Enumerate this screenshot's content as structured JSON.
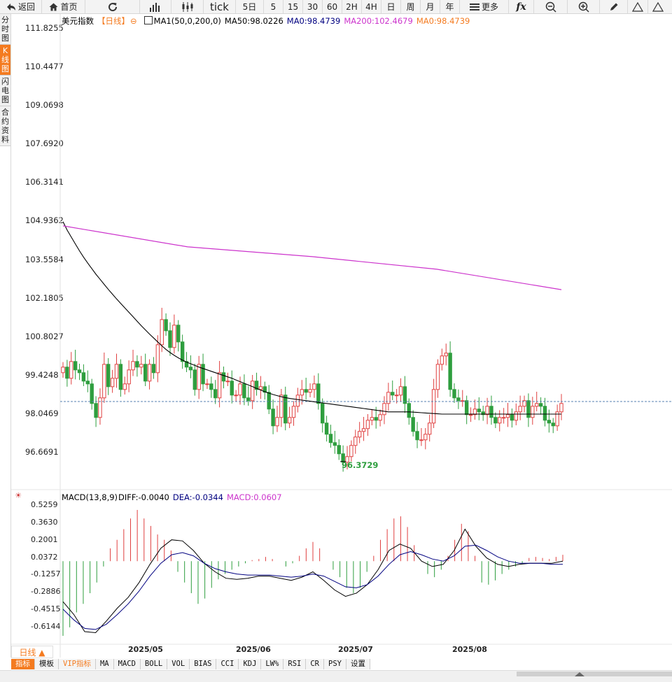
{
  "toolbar": {
    "back": "返回",
    "home": "首页",
    "tick": "tick",
    "periods": [
      "5日",
      "5",
      "15",
      "30",
      "60",
      "2H",
      "4H",
      "日",
      "周",
      "月",
      "年"
    ],
    "more": "更多"
  },
  "side_tabs": [
    "分时图",
    "K线图",
    "闪电图",
    "合约资料"
  ],
  "main_legend": {
    "name": "美元指数",
    "period": "【日线】",
    "ma_label": "MA1(50,0,200,0)",
    "ma50": "MA50:98.0226",
    "ma0_a": "MA0:98.4739",
    "ma200": "MA200:102.4679",
    "ma0_b": "MA0:98.4739"
  },
  "macd_legend": {
    "name": "MACD(13,8,9)",
    "diff": "DIFF:-0.0040",
    "dea": "DEA:-0.0344",
    "macd": "MACD:0.0607"
  },
  "price_axis": [
    "111.8255",
    "110.4477",
    "109.0698",
    "107.6920",
    "106.3141",
    "104.9362",
    "103.5584",
    "102.1805",
    "100.8027",
    "99.4248",
    "98.0469",
    "96.6691"
  ],
  "macd_axis": [
    "0.5259",
    "0.3630",
    "0.2001",
    "0.0372",
    "-0.1257",
    "-0.2886",
    "-0.4515",
    "-0.6144"
  ],
  "low_label": "96.3729",
  "x_axis": [
    "2025/05",
    "2025/06",
    "2025/07",
    "2025/08"
  ],
  "period_button": "日线 ▲",
  "bottom_tabs": [
    "指标",
    "模板",
    "VIP指标",
    "MA",
    "MACD",
    "BOLL",
    "VOL",
    "BIAS",
    "CCI",
    "KDJ",
    "LW%",
    "RSI",
    "CR",
    "PSY",
    "设置"
  ],
  "colors": {
    "up": "#e04040",
    "down": "#2e9e3e",
    "ma50": "#000000",
    "ma200": "#cc33cc",
    "accent": "#f47b20",
    "dea": "#000080"
  },
  "chart_data": {
    "type": "candlestick",
    "title": "美元指数",
    "price_range": [
      96.0,
      112.3
    ],
    "last_price_line": 98.47,
    "closes": [
      99.7,
      99.3,
      99.9,
      99.6,
      99.5,
      99.2,
      99.1,
      98.4,
      97.9,
      98.6,
      99.8,
      99.0,
      99.3,
      99.8,
      98.9,
      99.1,
      99.6,
      99.9,
      99.7,
      99.8,
      99.2,
      99.8,
      99.5,
      100.5,
      101.4,
      101.0,
      100.4,
      101.2,
      100.6,
      99.9,
      99.7,
      99.6,
      98.9,
      99.8,
      99.1,
      99.1,
      98.9,
      98.6,
      99.5,
      99.2,
      99.2,
      98.7,
      98.7,
      99.1,
      98.6,
      98.5,
      99.2,
      98.9,
      99.0,
      98.8,
      98.2,
      97.6,
      97.9,
      98.7,
      97.7,
      97.9,
      98.3,
      98.7,
      98.9,
      98.8,
      98.9,
      99.1,
      98.4,
      97.7,
      97.3,
      97.0,
      96.9,
      96.6,
      96.3,
      96.5,
      96.9,
      97.2,
      97.4,
      97.5,
      97.8,
      97.9,
      97.8,
      98.0,
      98.4,
      98.8,
      98.7,
      98.7,
      99.0,
      98.4,
      97.9,
      97.4,
      97.1,
      97.1,
      97.3,
      97.7,
      98.9,
      99.8,
      100.1,
      100.2,
      98.9,
      98.6,
      98.5,
      98.5,
      98.0,
      98.0,
      98.2,
      98.1,
      98.0,
      98.3,
      97.9,
      97.7,
      97.9,
      97.9,
      98.0,
      97.8,
      98.1,
      98.3,
      98.5,
      97.9,
      98.3,
      98.4,
      98.3,
      97.8,
      97.7,
      97.6,
      98.1,
      98.4
    ],
    "ma50": [
      104.9,
      104.6,
      104.35,
      104.1,
      103.86,
      103.63,
      103.42,
      103.22,
      103.02,
      102.84,
      102.66,
      102.48,
      102.31,
      102.14,
      101.98,
      101.82,
      101.66,
      101.5,
      101.34,
      101.18,
      101.03,
      100.88,
      100.74,
      100.6,
      100.46,
      100.33,
      100.22,
      100.12,
      100.03,
      99.95,
      99.88,
      99.82,
      99.76,
      99.7,
      99.65,
      99.6,
      99.55,
      99.5,
      99.45,
      99.4,
      99.35,
      99.3,
      99.24,
      99.18,
      99.12,
      99.06,
      99.0,
      98.94,
      98.88,
      98.82,
      98.77,
      98.72,
      98.68,
      98.64,
      98.61,
      98.58,
      98.56,
      98.54,
      98.52,
      98.5,
      98.48,
      98.46,
      98.44,
      98.42,
      98.4,
      98.38,
      98.36,
      98.34,
      98.32,
      98.3,
      98.28,
      98.26,
      98.24,
      98.22,
      98.2,
      98.18,
      98.16,
      98.14,
      98.12,
      98.1,
      98.1,
      98.1,
      98.1,
      98.1,
      98.1,
      98.09,
      98.08,
      98.07,
      98.06,
      98.05,
      98.04,
      98.03,
      98.02,
      98.02,
      98.02,
      98.02,
      98.02,
      98.02,
      98.02,
      98.02,
      98.02,
      98.02,
      98.02,
      98.02,
      98.02,
      98.02,
      98.02,
      98.02,
      98.02,
      98.02,
      98.02,
      98.02,
      98.02,
      98.02,
      98.02,
      98.02,
      98.02,
      98.02,
      98.02,
      98.02,
      98.02,
      98.02
    ],
    "ma200": [
      104.75,
      104.0,
      103.65,
      103.2,
      102.47
    ],
    "macd_range": [
      -0.72,
      0.6
    ],
    "diff_line": [
      -0.38,
      -0.5,
      -0.66,
      -0.67,
      -0.56,
      -0.44,
      -0.34,
      -0.2,
      -0.03,
      0.12,
      0.2,
      0.19,
      0.1,
      -0.02,
      -0.1,
      -0.16,
      -0.17,
      -0.16,
      -0.14,
      -0.14,
      -0.16,
      -0.18,
      -0.15,
      -0.1,
      -0.18,
      -0.27,
      -0.33,
      -0.3,
      -0.22,
      -0.08,
      0.1,
      0.16,
      0.12,
      0.0,
      -0.05,
      -0.03,
      0.1,
      0.3,
      0.14,
      0.03,
      -0.03,
      -0.05,
      -0.03,
      -0.02,
      -0.02,
      -0.02,
      -0.0
    ],
    "dea_line": [
      -0.45,
      -0.55,
      -0.63,
      -0.64,
      -0.59,
      -0.5,
      -0.4,
      -0.28,
      -0.14,
      -0.02,
      0.06,
      0.08,
      0.05,
      -0.02,
      -0.07,
      -0.1,
      -0.12,
      -0.13,
      -0.13,
      -0.13,
      -0.14,
      -0.15,
      -0.14,
      -0.12,
      -0.14,
      -0.19,
      -0.24,
      -0.25,
      -0.22,
      -0.14,
      -0.03,
      0.06,
      0.09,
      0.06,
      0.02,
      0.0,
      0.05,
      0.14,
      0.15,
      0.1,
      0.04,
      0.0,
      -0.02,
      -0.02,
      -0.02,
      -0.03,
      -0.03
    ],
    "macd_hist": [
      -0.7,
      -0.62,
      -0.48,
      -0.4,
      -0.3,
      -0.2,
      -0.05,
      0.12,
      0.2,
      0.3,
      0.4,
      0.48,
      0.4,
      0.33,
      0.25,
      0.2,
      0.1,
      -0.1,
      -0.2,
      -0.3,
      -0.4,
      -0.35,
      -0.25,
      -0.17,
      -0.12,
      -0.08,
      -0.05,
      -0.02,
      0.01,
      0.02,
      0.04,
      0.02,
      0.0,
      -0.05,
      -0.02,
      0.05,
      0.12,
      0.18,
      0.12,
      0.0,
      -0.08,
      -0.15,
      -0.25,
      -0.3,
      -0.25,
      -0.1,
      0.05,
      0.2,
      0.3,
      0.4,
      0.42,
      0.32,
      0.15,
      0.0,
      -0.12,
      -0.15,
      -0.08,
      0.05,
      0.2,
      0.35,
      0.28,
      0.05,
      -0.2,
      -0.22,
      -0.18,
      -0.12,
      -0.08,
      -0.05,
      -0.02,
      0.03,
      0.04,
      0.03,
      0.02,
      0.04,
      0.06
    ]
  }
}
